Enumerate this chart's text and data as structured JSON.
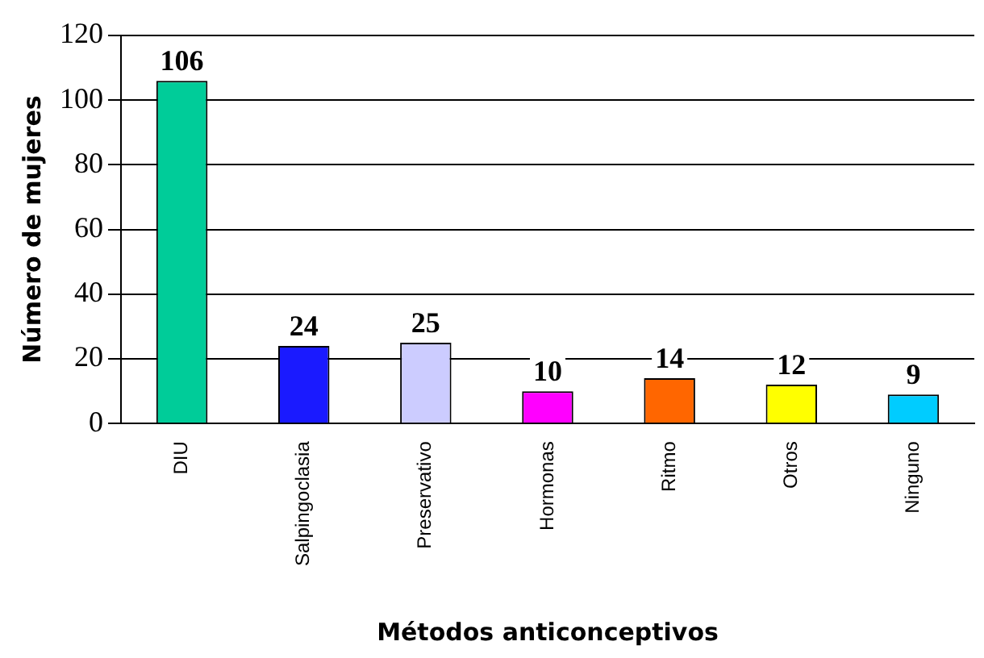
{
  "chart_data": {
    "type": "bar",
    "xlabel": "Métodos anticonceptivos",
    "ylabel": "Número de mujeres",
    "categories": [
      "DIU",
      "Salpingoclasia",
      "Preservativo",
      "Hormonas",
      "Ritmo",
      "Otros",
      "Ninguno"
    ],
    "values": [
      106,
      24,
      25,
      10,
      14,
      12,
      9
    ],
    "colors": [
      "#00cc99",
      "#1a1aff",
      "#ccccff",
      "#ff00ff",
      "#ff6600",
      "#ffff00",
      "#00ccff"
    ],
    "ylim": [
      0,
      120
    ],
    "yticks": [
      0,
      20,
      40,
      60,
      80,
      100,
      120
    ],
    "grid": "y",
    "data_labels": true,
    "legend": false
  }
}
